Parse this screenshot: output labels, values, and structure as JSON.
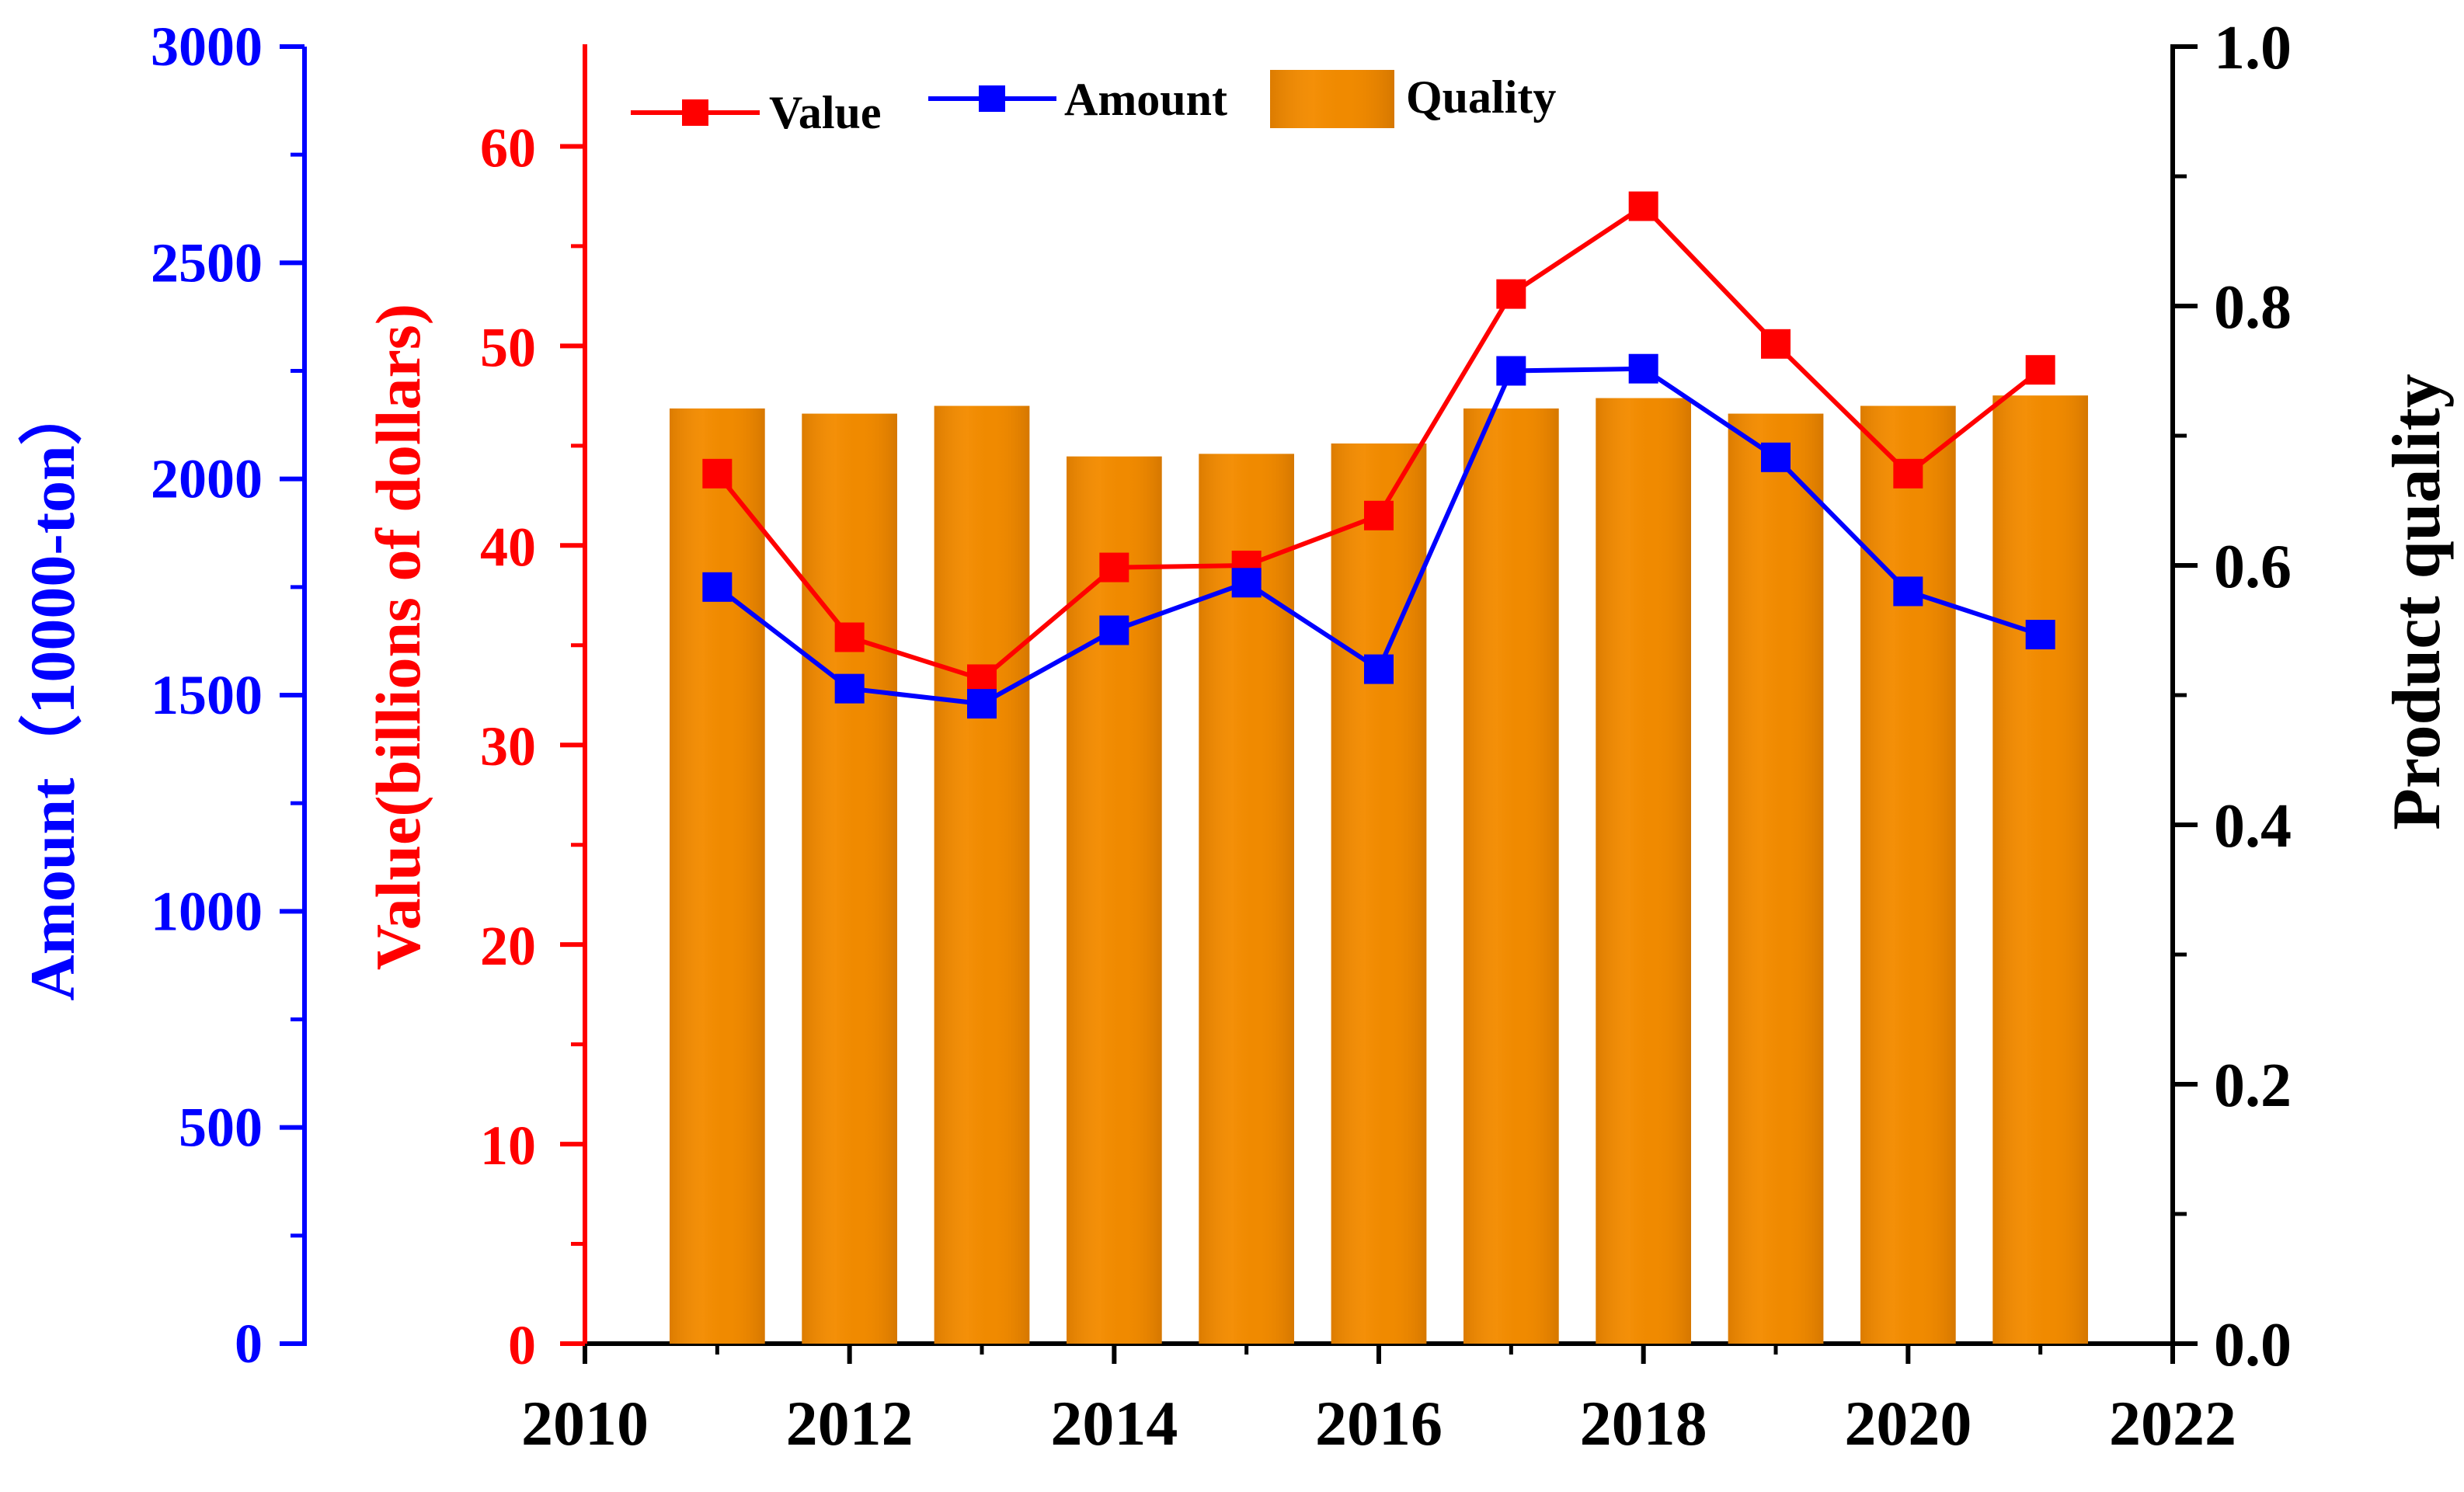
{
  "chart_data": {
    "type": "bar+line",
    "x": [
      2011,
      2012,
      2013,
      2014,
      2015,
      2016,
      2017,
      2018,
      2019,
      2020,
      2021
    ],
    "xlim": [
      2010,
      2022
    ],
    "xticks": [
      "2010",
      "2012",
      "2014",
      "2016",
      "2018",
      "2020",
      "2022"
    ],
    "series": [
      {
        "name": "Quality",
        "kind": "bar",
        "axis": "right",
        "color": "#f08a00",
        "values": [
          0.721,
          0.717,
          0.723,
          0.684,
          0.686,
          0.694,
          0.721,
          0.729,
          0.717,
          0.723,
          0.731
        ]
      },
      {
        "name": "Value",
        "kind": "line",
        "axis": "left-inner",
        "color": "#ff0000",
        "values": [
          43.6,
          35.4,
          33.3,
          38.9,
          39.0,
          41.5,
          52.6,
          57.0,
          50.1,
          43.6,
          48.8
        ]
      },
      {
        "name": "Amount",
        "kind": "line",
        "axis": "left-outer",
        "color": "#0000ff",
        "values": [
          1750,
          1515,
          1480,
          1650,
          1760,
          1560,
          2250,
          2255,
          2050,
          1740,
          1640
        ]
      }
    ],
    "axes": {
      "left_outer": {
        "label": "Amount（10000-ton）",
        "ylim": [
          0,
          3000
        ],
        "ticks": [
          "0",
          "500",
          "1000",
          "1500",
          "2000",
          "2500",
          "3000"
        ],
        "color": "#0000ff"
      },
      "left_inner": {
        "label": "Value(billions of dollars)",
        "ylim": [
          0,
          65
        ],
        "ticks": [
          "0",
          "10",
          "20",
          "30",
          "40",
          "50",
          "60"
        ],
        "color": "#ff0000"
      },
      "right": {
        "label": "Product quality",
        "ylim": [
          0,
          1.0
        ],
        "ticks": [
          "0.0",
          "0.2",
          "0.4",
          "0.6",
          "0.8",
          "1.0"
        ],
        "color": "#000000"
      }
    },
    "legend": [
      "Value",
      "Amount",
      "Quality"
    ]
  }
}
